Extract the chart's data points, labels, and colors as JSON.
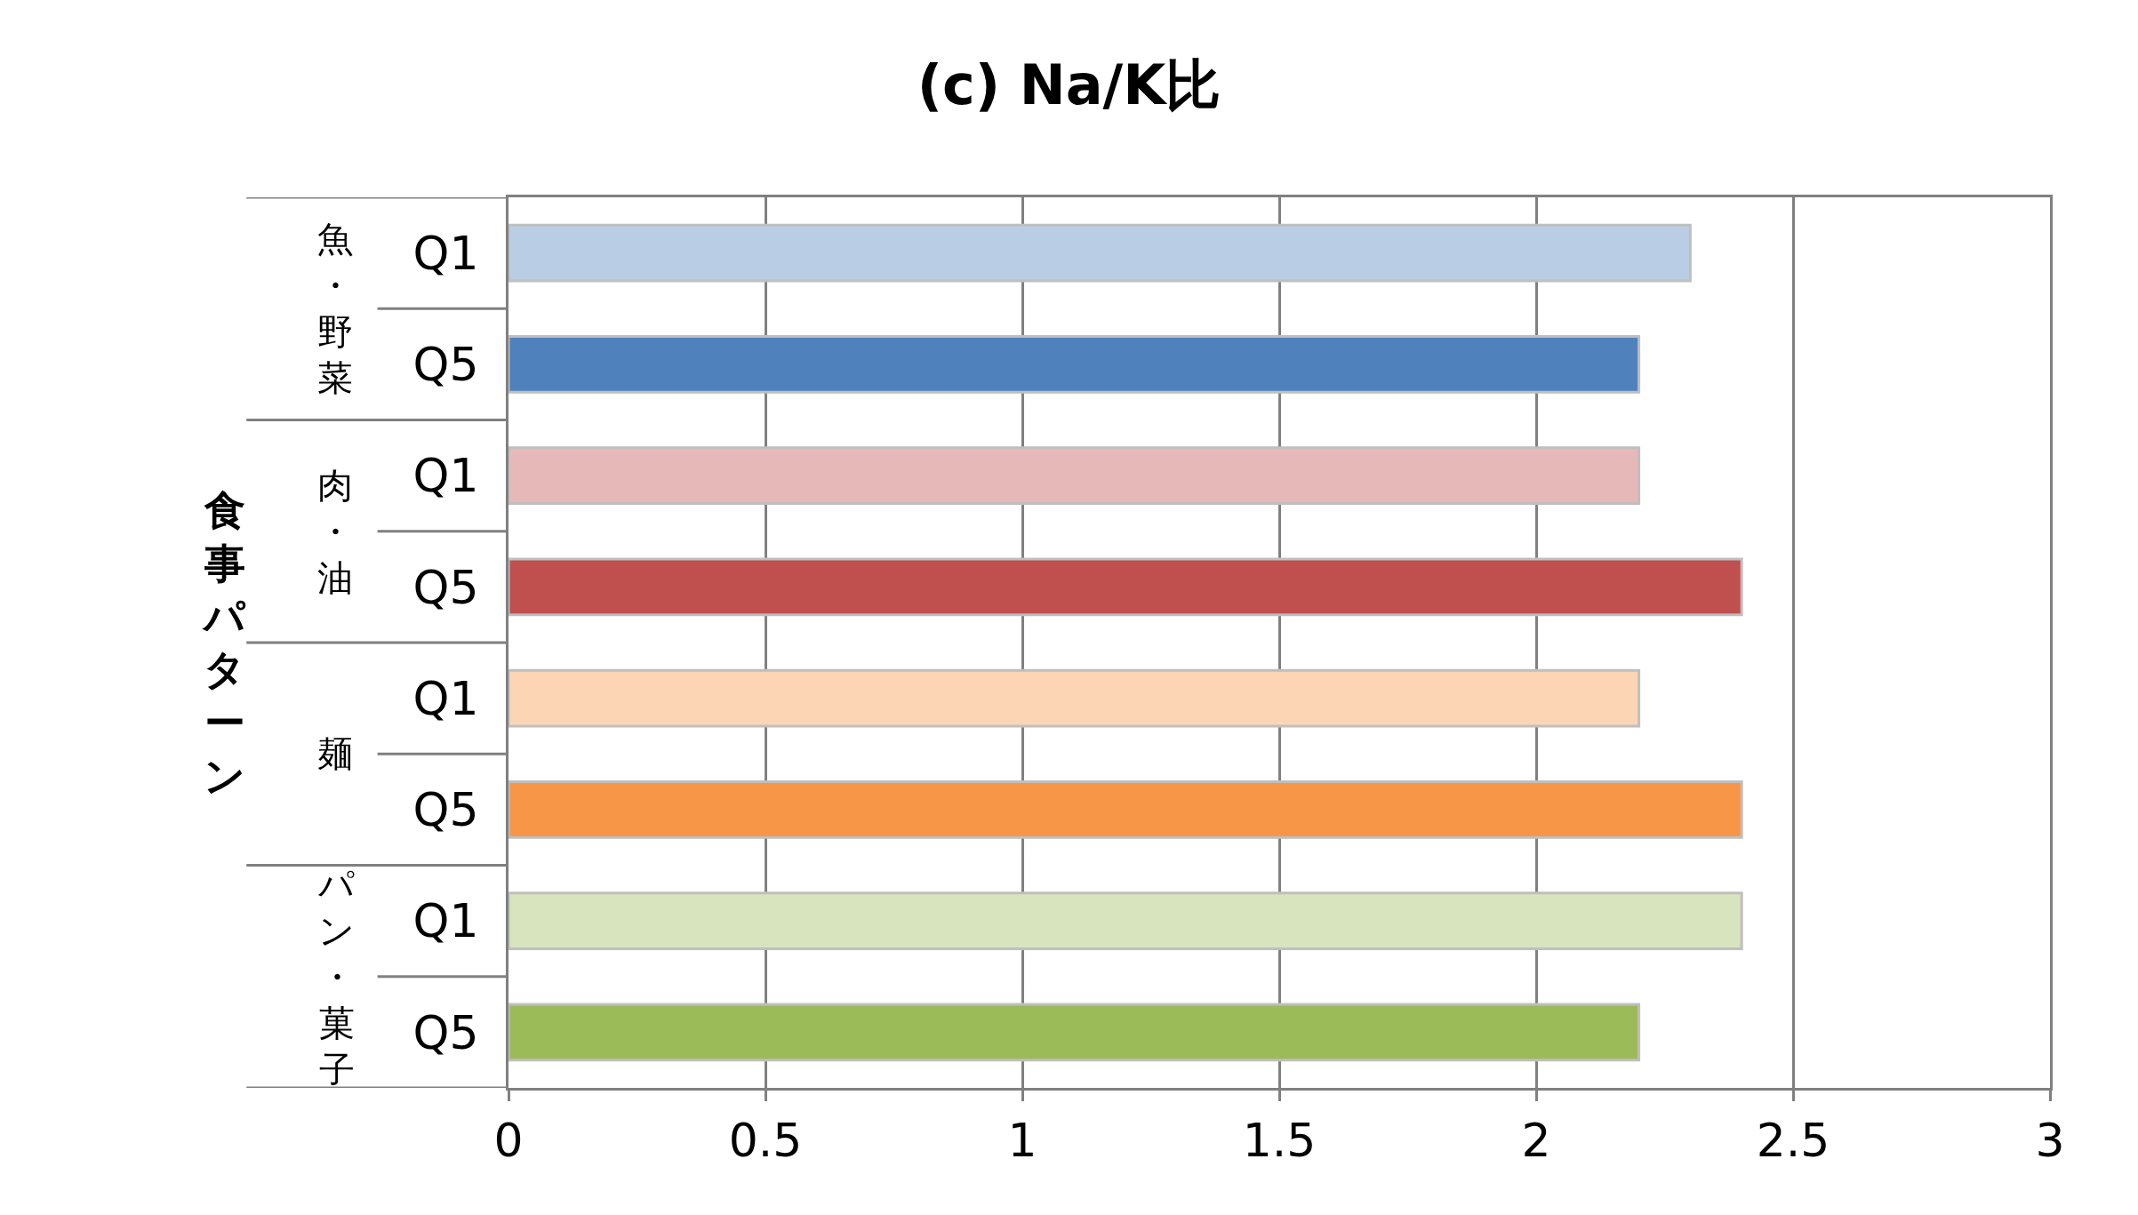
{
  "chart_data": {
    "type": "bar",
    "orientation": "horizontal",
    "title": "(c) Na/K比",
    "ylabel": "食事パターン",
    "categories": [
      "Q1",
      "Q5",
      "Q1",
      "Q5",
      "Q1",
      "Q5",
      "Q1",
      "Q5"
    ],
    "values": [
      2.3,
      2.2,
      2.2,
      2.4,
      2.2,
      2.4,
      2.4,
      2.2
    ],
    "colors": [
      "#b9cde5",
      "#4f81bd",
      "#e6b9b8",
      "#c0504d",
      "#fcd5b5",
      "#f79646",
      "#d7e4bd",
      "#9bbb59"
    ],
    "annotations": [
      "魚・野菜",
      "肉・油",
      "麺",
      "パン・菓子"
    ],
    "xlim": [
      0,
      3
    ],
    "xticks": [
      0,
      0.5,
      1,
      1.5,
      2,
      2.5,
      3
    ],
    "grid": "x"
  }
}
